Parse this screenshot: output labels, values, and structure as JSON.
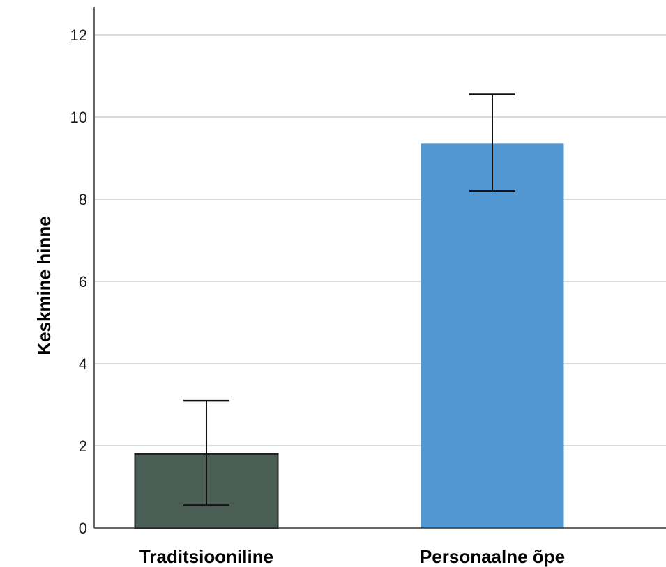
{
  "chart_data": {
    "type": "bar",
    "title": "",
    "xlabel": "",
    "ylabel": "Keskmine hinne",
    "ylim": [
      0,
      12
    ],
    "yticks": [
      0,
      2,
      4,
      6,
      8,
      10,
      12
    ],
    "grid": true,
    "categories": [
      "Traditsiooniline",
      "Personaalne õpe"
    ],
    "values": [
      1.8,
      9.35
    ],
    "error_low": [
      0.55,
      8.2
    ],
    "error_high": [
      3.1,
      10.55
    ],
    "colors": [
      "#4b5e55",
      "#5297d2"
    ]
  }
}
